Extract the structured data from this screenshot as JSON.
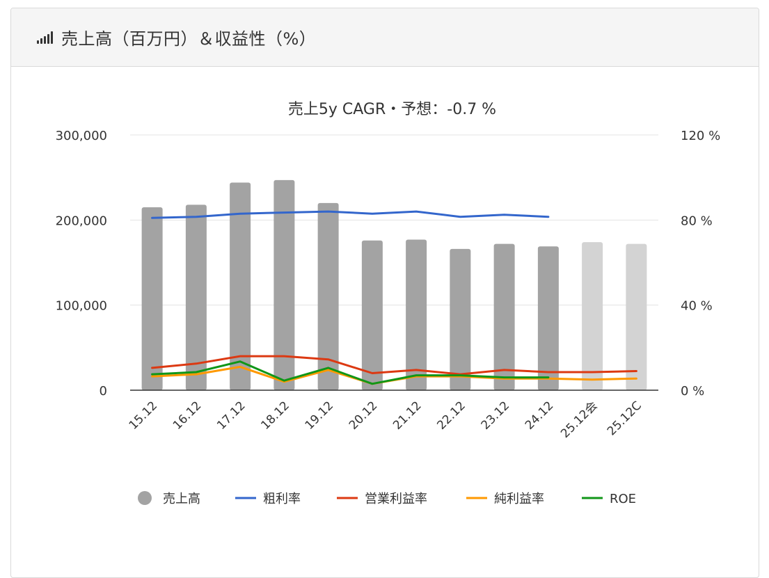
{
  "header": {
    "title": "売上高（百万円）＆収益性（%）"
  },
  "chart_data": {
    "type": "bar",
    "title": "売上5y CAGR・予想：-0.7 %",
    "categories": [
      "15.12",
      "16.12",
      "17.12",
      "18.12",
      "19.12",
      "20.12",
      "21.12",
      "22.12",
      "23.12",
      "24.12",
      "25.12会",
      "25.12C"
    ],
    "y_left": {
      "ylim": [
        0,
        300000
      ],
      "ticks": [
        "0",
        "100,000",
        "200,000",
        "300,000"
      ]
    },
    "y_right": {
      "ylim": [
        0,
        120
      ],
      "ticks": [
        "0 %",
        "40 %",
        "80 %",
        "120 %"
      ]
    },
    "bars": {
      "name": "売上高",
      "values": [
        215000,
        218000,
        244000,
        247000,
        220000,
        176000,
        177000,
        166000,
        172000,
        169000,
        174000,
        172000
      ],
      "forecast_from_index": 10,
      "color": "#a3a3a3",
      "forecast_color": "#d3d3d3"
    },
    "series": [
      {
        "name": "粗利率",
        "color": "#3366cc",
        "values": [
          81,
          81.5,
          83,
          83.5,
          84,
          83,
          84,
          81.5,
          82.5,
          81.5,
          null,
          null
        ]
      },
      {
        "name": "営業利益率",
        "color": "#dc3912",
        "values": [
          10.5,
          12.5,
          16,
          16,
          14.5,
          8,
          9.5,
          7.5,
          9.5,
          8.5,
          8.5,
          9
        ]
      },
      {
        "name": "純利益率",
        "color": "#ff9900",
        "values": [
          6.5,
          7.5,
          11,
          4,
          9.5,
          3,
          6.5,
          6.5,
          5.5,
          5.5,
          5,
          5.5
        ]
      },
      {
        "name": "ROE",
        "color": "#109618",
        "values": [
          7.5,
          8.5,
          13.5,
          4.5,
          10.5,
          3,
          7,
          7,
          6,
          6,
          null,
          null
        ]
      }
    ],
    "legend_position": "bottom",
    "grid": true
  }
}
